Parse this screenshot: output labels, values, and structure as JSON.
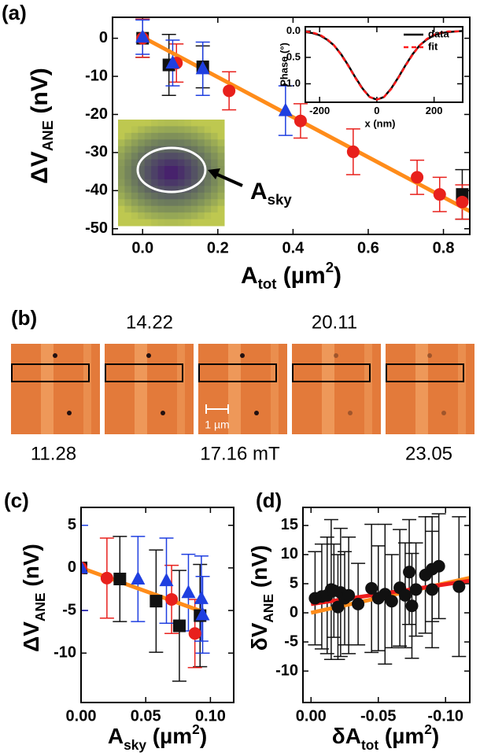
{
  "chart_data": [
    {
      "type": "scatter",
      "panel": "(a)",
      "ylabel": [
        {
          "t": "ΔV"
        },
        {
          "t": "ANE",
          "sub": true
        },
        {
          "t": " (nV)"
        }
      ],
      "xlabel": [
        {
          "t": "A"
        },
        {
          "t": "tot",
          "sub": true
        },
        {
          "t": " (µm"
        },
        {
          "t": "2",
          "sup": true
        },
        {
          "t": ")"
        }
      ],
      "annotation": [
        {
          "t": "A"
        },
        {
          "t": "sky",
          "sub": true
        }
      ],
      "xlim": [
        -0.08,
        0.87
      ],
      "ylim": [
        -51.5,
        5.5
      ],
      "xticks": [
        {
          "value": 0,
          "label": "0.0"
        },
        {
          "value": 0.2,
          "label": "0.2"
        },
        {
          "value": 0.4,
          "label": "0.4"
        },
        {
          "value": 0.6,
          "label": "0.6"
        },
        {
          "value": 0.8,
          "label": "0.8"
        }
      ],
      "yticks": [
        0,
        -10,
        -20,
        -30,
        -40,
        -50
      ],
      "series": [
        {
          "marker": "square",
          "color": "#111111",
          "x": [
            0.0,
            0.07,
            0.16,
            0.85
          ],
          "values": [
            0,
            -7,
            -7.5,
            -41
          ],
          "errors": [
            5,
            8,
            5.5,
            6.5
          ]
        },
        {
          "marker": "circle",
          "color": "#e8201c",
          "x": [
            0.0,
            0.09,
            0.23,
            0.42,
            0.56,
            0.73,
            0.79,
            0.85
          ],
          "values": [
            0,
            -6.5,
            -13.8,
            -21.7,
            -29.8,
            -36.5,
            -41,
            -43
          ],
          "errors": [
            5,
            5,
            5,
            4.5,
            6,
            4.5,
            4.5,
            4.5
          ]
        },
        {
          "marker": "triangle",
          "color": "#1f3fe0",
          "x": [
            0.0,
            0.08,
            0.16,
            0.38
          ],
          "values": [
            0.3,
            -6.5,
            -8,
            -19
          ],
          "errors": [
            4.5,
            6,
            7,
            6.5
          ]
        }
      ],
      "fit": {
        "color": "#ff8c1a",
        "x": [
          0,
          0.87
        ],
        "values": [
          0.3,
          -45.4
        ]
      }
    },
    {
      "type": "line",
      "ylabel": "Phase (°)",
      "xlabel": "x (nm)",
      "xlim": [
        -250,
        300
      ],
      "ylim": [
        -1.35,
        0.08
      ],
      "xticks": [
        -200,
        0,
        200
      ],
      "yticks": [
        {
          "value": 0,
          "label": "0.0"
        },
        {
          "value": -0.5,
          "label": "-0.5"
        },
        {
          "value": -1,
          "label": "-1.0"
        }
      ],
      "x": [
        -250,
        -225,
        -200,
        -175,
        -150,
        -125,
        -100,
        -75,
        -50,
        -25,
        0,
        25,
        50,
        75,
        100,
        125,
        150,
        175,
        200,
        225,
        250,
        275,
        300
      ],
      "series": [
        {
          "name": "data",
          "color": "#000000",
          "dash": false,
          "values": [
            -0.02,
            -0.04,
            -0.08,
            -0.16,
            -0.27,
            -0.44,
            -0.65,
            -0.88,
            -1.09,
            -1.25,
            -1.3,
            -1.25,
            -1.09,
            -0.88,
            -0.65,
            -0.44,
            -0.27,
            -0.16,
            -0.08,
            -0.04,
            -0.02,
            -0.01,
            0.0
          ]
        },
        {
          "name": "fit",
          "color": "#ff1a1a",
          "dash": true,
          "values": [
            -0.01,
            -0.03,
            -0.07,
            -0.15,
            -0.27,
            -0.45,
            -0.66,
            -0.89,
            -1.1,
            -1.25,
            -1.3,
            -1.25,
            -1.1,
            -0.89,
            -0.66,
            -0.45,
            -0.27,
            -0.15,
            -0.07,
            -0.03,
            -0.01,
            -0.01,
            0.0
          ]
        }
      ]
    },
    {
      "type": "scatter",
      "panel": "(c)",
      "ylabel": [
        {
          "t": "ΔV"
        },
        {
          "t": "ANE",
          "sub": true
        },
        {
          "t": " (nV)"
        }
      ],
      "xlabel": [
        {
          "t": "A"
        },
        {
          "t": "sky",
          "sub": true
        },
        {
          "t": " (µm"
        },
        {
          "t": "2",
          "sup": true
        },
        {
          "t": ")"
        }
      ],
      "xlim": [
        0,
        0.118
      ],
      "ylim": [
        -15.8,
        7.1
      ],
      "xticks": [
        {
          "value": 0,
          "label": "0.00"
        },
        {
          "value": 0.05,
          "label": "0.05"
        },
        {
          "value": 0.1,
          "label": "0.10"
        }
      ],
      "yticks": [
        5,
        0,
        -5,
        -10
      ],
      "series": [
        {
          "marker": "square",
          "color": "#111111",
          "x": [
            0.0,
            0.03,
            0.058,
            0.076,
            0.092
          ],
          "values": [
            0,
            -1.3,
            -3.9,
            -6.8,
            -5.6
          ],
          "errors": [
            5,
            5,
            6,
            6.5,
            6
          ]
        },
        {
          "marker": "circle",
          "color": "#e8201c",
          "x": [
            0.0,
            0.02,
            0.07,
            0.088
          ],
          "values": [
            0,
            -1.2,
            -3.7,
            -7.7
          ],
          "errors": [
            5,
            4.7,
            4,
            4
          ]
        },
        {
          "marker": "triangle",
          "color": "#1f3fe0",
          "x": [
            0.0,
            0.044,
            0.066,
            0.083,
            0.093,
            0.094
          ],
          "values": [
            0,
            -1.3,
            -1.5,
            -2.9,
            -3.6,
            -5.5
          ],
          "errors": [
            5,
            5,
            5,
            4.5,
            5,
            4.5
          ]
        }
      ],
      "fit": {
        "color": "#ff8c1a",
        "x": [
          0,
          0.095
        ],
        "values": [
          0,
          -5.2
        ]
      }
    },
    {
      "type": "scatter",
      "panel": "(d)",
      "ylabel": [
        {
          "t": "δV"
        },
        {
          "t": "ANE",
          "sub": true
        },
        {
          "t": " (nV)"
        }
      ],
      "xlabel": [
        {
          "t": "δA"
        },
        {
          "t": "tot",
          "sub": true
        },
        {
          "t": " (µm"
        },
        {
          "t": "2",
          "sup": true
        },
        {
          "t": ")"
        }
      ],
      "xlim": [
        0.006,
        -0.118
      ],
      "ylim": [
        -15.4,
        18.1
      ],
      "xticks": [
        {
          "value": 0,
          "label": "0.00"
        },
        {
          "value": -0.05,
          "label": "-0.05"
        },
        {
          "value": -0.1,
          "label": "-0.10"
        }
      ],
      "yticks": [
        15,
        10,
        5,
        0,
        -5,
        -10
      ],
      "series": [
        {
          "marker": "circle",
          "color": "#111111",
          "x": [
            -0.003,
            -0.008,
            -0.012,
            -0.015,
            -0.017,
            -0.02,
            -0.022,
            -0.025,
            -0.028,
            -0.035,
            -0.045,
            -0.05,
            -0.055,
            -0.06,
            -0.066,
            -0.07,
            -0.073,
            -0.075,
            -0.078,
            -0.085,
            -0.09,
            -0.09,
            -0.095,
            -0.11
          ],
          "values": [
            2.5,
            2.8,
            3,
            4,
            3.8,
            1,
            3.5,
            2.5,
            3,
            1.5,
            4.2,
            2.5,
            3.2,
            2,
            4.3,
            3,
            7,
            1.2,
            4,
            6.5,
            7.5,
            4,
            8,
            4.5
          ],
          "errors": [
            8,
            9,
            10,
            12,
            8,
            9,
            11,
            8,
            10,
            7,
            11,
            9,
            12,
            8,
            10,
            9,
            9,
            9,
            8,
            10,
            9,
            10,
            9,
            12
          ]
        }
      ],
      "fits": [
        {
          "color": "#ff8c1a",
          "x": [
            0,
            -0.118
          ],
          "values": [
            0,
            6
          ]
        },
        {
          "color": "#ee1c1c",
          "x": [
            0,
            -0.118
          ],
          "values": [
            1.5,
            5.5
          ]
        }
      ]
    }
  ],
  "panel_b": {
    "label": "(b)",
    "top_labels": [
      "14.22",
      "20.11"
    ],
    "bottom_labels": [
      "11.28",
      "17.16 mT",
      "23.05"
    ],
    "scale_bar": "1 µm"
  }
}
